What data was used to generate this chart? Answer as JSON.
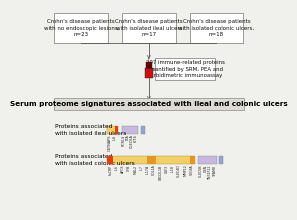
{
  "title": "Serum proteome signatures associated with ileal and colonic ulcers",
  "box1_text": "Crohn's disease patients\nwith no endoscopic lesions,\nn=23",
  "box2_text": "Crohn's disease patients\nwith isolated ileal ulcers\nn=17",
  "box3_text": "Crohn's disease patients\nwith isolated colonic ulcers,\nn=18",
  "method_box_text": "207 immune-related proteins\nquantified by SRM, PEA and\nturbidimetric immunoassay",
  "ileal_label": "Proteins associated\nwith isolated ileal ulcers",
  "colonic_label": "Proteins associated\nwith isolated colonic ulcers",
  "ileal_yellow_proteins": [
    "OSTNAPS",
    "IL6"
  ],
  "ileal_purple_proteins": [
    "FCRLS",
    "LTA",
    "CLEC6A",
    "KIT4"
  ],
  "colonic_yellow_proteins": [
    "hsCRP",
    "IL6",
    "APCS",
    "CFB",
    "MBL2",
    "IL7",
    "IL17A",
    "COL1A",
    "CBD2L1B",
    "CSF3",
    "IL18",
    "CLEC4D",
    "MMP12",
    "VEGFA"
  ],
  "colonic_purple_proteins": [
    "CLEC5B",
    "GSN",
    "TNF2F12",
    "TPAM8"
  ],
  "yellow_color": "#F5D060",
  "orange_color": "#E04010",
  "orange2_color": "#E09820",
  "purple_color": "#C8B8E0",
  "blue_color": "#90A8D0",
  "red_dark": "#6B0000",
  "red_bright": "#CC1010",
  "bg_color": "#F0F0EC",
  "title_bg": "#DCDCD4",
  "connector_color": "#555555",
  "box_border": "#777777",
  "text_color": "#111111"
}
